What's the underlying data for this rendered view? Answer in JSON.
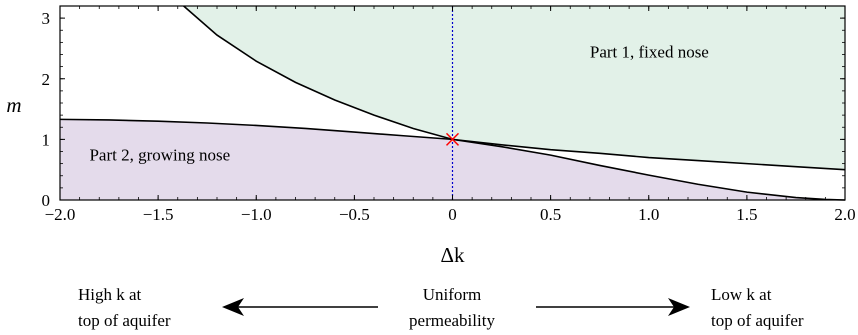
{
  "chart_data": {
    "type": "line",
    "xlabel": "Δk",
    "ylabel": "m",
    "xlim": [
      -2.0,
      2.0
    ],
    "ylim": [
      0,
      3.2
    ],
    "x_ticks": [
      "−2.0",
      "−1.5",
      "−1.0",
      "−0.5",
      "0",
      "0.5",
      "1.0",
      "1.5",
      "2.0"
    ],
    "y_ticks": [
      "0",
      "1",
      "2",
      "3"
    ],
    "series": [
      {
        "x": [
          -1.37,
          -1.2,
          -1.0,
          -0.8,
          -0.6,
          -0.4,
          -0.2,
          0.0,
          0.25,
          0.5,
          0.75,
          1.0,
          1.25,
          1.5,
          1.75,
          2.0
        ],
        "y": [
          3.2,
          2.72,
          2.29,
          1.94,
          1.65,
          1.4,
          1.18,
          1.0,
          0.91,
          0.83,
          0.77,
          0.7,
          0.65,
          0.6,
          0.55,
          0.5
        ]
      },
      {
        "x": [
          -2.0,
          -1.75,
          -1.5,
          -1.25,
          -1.0,
          -0.75,
          -0.5,
          -0.25,
          0.0,
          0.25,
          0.5,
          0.75,
          1.0,
          1.25,
          1.5,
          1.75,
          1.9,
          2.0
        ],
        "y": [
          1.33,
          1.32,
          1.3,
          1.27,
          1.23,
          1.18,
          1.12,
          1.06,
          1.0,
          0.88,
          0.74,
          0.57,
          0.41,
          0.26,
          0.13,
          0.04,
          0.01,
          0.0
        ]
      }
    ],
    "regions": [
      {
        "label": "Part 1, fixed nose",
        "fill": "#e2f1e8"
      },
      {
        "label": "Part 2, growing nose",
        "fill": "#e4dbeb"
      }
    ],
    "marker": {
      "x": 0,
      "y": 1,
      "color": "#ff0000"
    },
    "vline": {
      "x": 0,
      "color": "#0000cc"
    },
    "grid": false
  },
  "annotations": {
    "left_label_line1": "High k at",
    "left_label_line2": "top of aquifer",
    "center_label_line1": "Uniform",
    "center_label_line2": "permeability",
    "right_label_line1": "Low k at",
    "right_label_line2": "top of aquifer"
  }
}
